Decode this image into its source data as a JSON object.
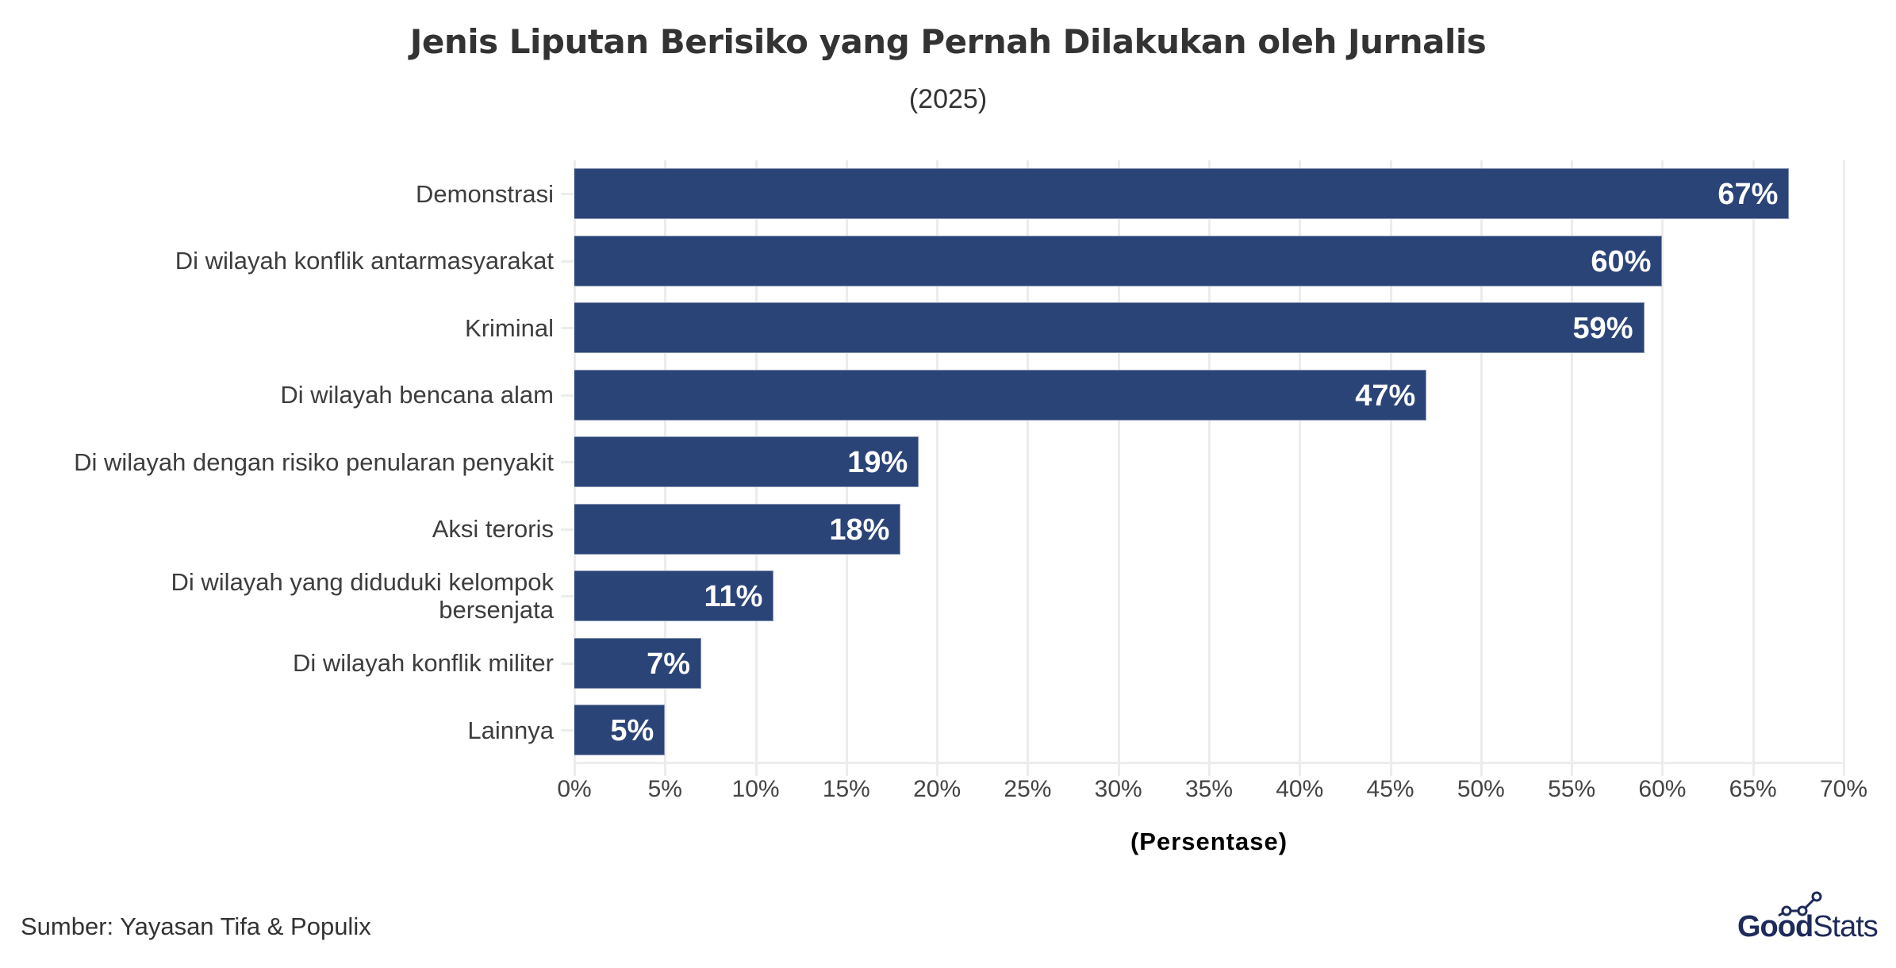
{
  "header": {
    "title": "Jenis Liputan Berisiko yang Pernah Dilakukan oleh Jurnalis",
    "subtitle": "(2025)"
  },
  "axis": {
    "x_title": "(Persentase)",
    "x_ticks": [
      "0%",
      "5%",
      "10%",
      "15%",
      "20%",
      "25%",
      "30%",
      "35%",
      "40%",
      "45%",
      "50%",
      "55%",
      "60%",
      "65%",
      "70%"
    ]
  },
  "bars": [
    {
      "line1": "Demonstrasi",
      "line2": "",
      "value_label": "67%"
    },
    {
      "line1": "Di wilayah konflik antarmasyarakat",
      "line2": "",
      "value_label": "60%"
    },
    {
      "line1": "Kriminal",
      "line2": "",
      "value_label": "59%"
    },
    {
      "line1": "Di wilayah bencana alam",
      "line2": "",
      "value_label": "47%"
    },
    {
      "line1": "Di wilayah dengan risiko penularan penyakit",
      "line2": "",
      "value_label": "19%"
    },
    {
      "line1": "Aksi teroris",
      "line2": "",
      "value_label": "18%"
    },
    {
      "line1": "Di wilayah yang diduduki kelompok",
      "line2": "bersenjata",
      "value_label": "11%"
    },
    {
      "line1": "Di wilayah konflik militer",
      "line2": "",
      "value_label": "7%"
    },
    {
      "line1": "Lainnya",
      "line2": "",
      "value_label": "5%"
    }
  ],
  "footer": {
    "source": "Sumber: Yayasan Tifa & Populix",
    "logo_bold": "Good",
    "logo_light": "Stats"
  },
  "colors": {
    "bar": "#2b4478",
    "grid": "#ececec",
    "logo": "#1e2a5a"
  },
  "chart_data": {
    "type": "bar",
    "orientation": "horizontal",
    "title": "Jenis Liputan Berisiko yang Pernah Dilakukan oleh Jurnalis",
    "subtitle": "(2025)",
    "categories": [
      "Demonstrasi",
      "Di wilayah konflik antarmasyarakat",
      "Kriminal",
      "Di wilayah bencana alam",
      "Di wilayah dengan risiko penularan penyakit",
      "Aksi teroris",
      "Di wilayah yang diduduki kelompok bersenjata",
      "Di wilayah konflik militer",
      "Lainnya"
    ],
    "values": [
      67,
      60,
      59,
      47,
      19,
      18,
      11,
      7,
      5
    ],
    "xlabel": "(Persentase)",
    "ylabel": "",
    "xlim": [
      0,
      70
    ],
    "x_tick_step": 5,
    "grid": true,
    "legend": "none",
    "source": "Sumber: Yayasan Tifa & Populix"
  }
}
